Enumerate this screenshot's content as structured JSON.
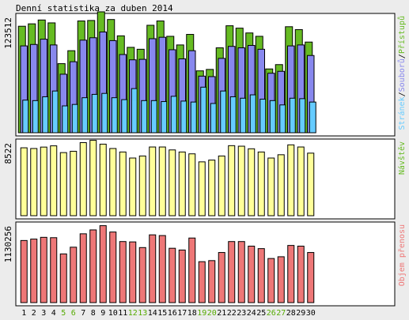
{
  "title": "Denní statistika za duben 2014",
  "colors": {
    "background": "#ececec",
    "panel": "#ffffff",
    "border": "#000000",
    "hits": "#66bb22",
    "files": "#8888ee",
    "pages": "#66ccff",
    "visits": "#ffff99",
    "kbytes": "#ee7777",
    "weekend_label": "#55aa00",
    "label": "#000000"
  },
  "chart_data": [
    {
      "type": "bar",
      "name": "hits-files-pages",
      "categories": [
        "1",
        "2",
        "3",
        "4",
        "5",
        "6",
        "7",
        "8",
        "9",
        "10",
        "11",
        "12",
        "13",
        "14",
        "15",
        "16",
        "17",
        "18",
        "19",
        "20",
        "21",
        "22",
        "23",
        "24",
        "25",
        "26",
        "27",
        "28",
        "29",
        "30"
      ],
      "weekend": [
        "5",
        "6",
        "12",
        "13",
        "19",
        "20",
        "26",
        "27"
      ],
      "ymax_label": "123512",
      "ylim": [
        0,
        123512
      ],
      "legend": [
        {
          "text": "Stránek",
          "color_key": "pages"
        },
        {
          "text": "/",
          "color_key": "label"
        },
        {
          "text": "Souborů",
          "color_key": "files"
        },
        {
          "text": "/",
          "color_key": "label"
        },
        {
          "text": "Přístupů",
          "color_key": "hits"
        }
      ],
      "series": [
        {
          "name": "Přístupů",
          "color_key": "hits",
          "values": [
            111000,
            113500,
            117500,
            114500,
            72000,
            85500,
            116500,
            117000,
            126000,
            118000,
            101000,
            89000,
            87000,
            112000,
            116500,
            100500,
            91500,
            102500,
            64500,
            66000,
            88500,
            111500,
            109000,
            104000,
            100500,
            66500,
            71000,
            110500,
            107500,
            94500
          ]
        },
        {
          "name": "Souborů",
          "color_key": "files",
          "values": [
            90500,
            92000,
            97500,
            91500,
            61000,
            74000,
            96500,
            99000,
            105000,
            96000,
            81500,
            76000,
            76500,
            98000,
            99500,
            86500,
            77000,
            85500,
            59000,
            58500,
            77500,
            90000,
            88500,
            91000,
            87000,
            62000,
            64000,
            90500,
            91500,
            80500
          ]
        },
        {
          "name": "Stránek",
          "color_key": "pages",
          "values": [
            34000,
            33500,
            37500,
            43500,
            28000,
            29500,
            36500,
            40000,
            41000,
            36500,
            34500,
            46000,
            33500,
            33500,
            32500,
            38000,
            33000,
            32000,
            47500,
            30500,
            43500,
            37500,
            36000,
            39500,
            35000,
            33500,
            29000,
            36000,
            35500,
            32000
          ]
        }
      ]
    },
    {
      "type": "bar",
      "name": "visits",
      "categories": [
        "1",
        "2",
        "3",
        "4",
        "5",
        "6",
        "7",
        "8",
        "9",
        "10",
        "11",
        "12",
        "13",
        "14",
        "15",
        "16",
        "17",
        "18",
        "19",
        "20",
        "21",
        "22",
        "23",
        "24",
        "25",
        "26",
        "27",
        "28",
        "29",
        "30"
      ],
      "ymax_label": "8522",
      "ylim": [
        0,
        8522
      ],
      "legend": [
        {
          "text": "Návštěv",
          "color_key": "hits"
        }
      ],
      "series": [
        {
          "name": "Návštěv",
          "color_key": "visits",
          "values": [
            7630,
            7550,
            7710,
            7850,
            7090,
            7240,
            8210,
            8470,
            8040,
            7550,
            7160,
            6480,
            6710,
            7720,
            7720,
            7390,
            7160,
            6950,
            6050,
            6250,
            6710,
            7870,
            7810,
            7520,
            7160,
            6480,
            6850,
            7960,
            7720,
            7030
          ]
        }
      ]
    },
    {
      "type": "bar",
      "name": "kbytes",
      "categories": [
        "1",
        "2",
        "3",
        "4",
        "5",
        "6",
        "7",
        "8",
        "9",
        "10",
        "11",
        "12",
        "13",
        "14",
        "15",
        "16",
        "17",
        "18",
        "19",
        "20",
        "21",
        "22",
        "23",
        "24",
        "25",
        "26",
        "27",
        "28",
        "29",
        "30"
      ],
      "ymax_label": "1130256",
      "ylim": [
        0,
        1130256
      ],
      "legend": [
        {
          "text": "Objem přenosu",
          "color_key": "kbytes"
        }
      ],
      "series": [
        {
          "name": "Objem přenosu",
          "color_key": "kbytes",
          "values": [
            880000,
            900000,
            925000,
            920000,
            690000,
            785000,
            975000,
            1030000,
            1090000,
            1000000,
            865000,
            860000,
            780000,
            960000,
            950000,
            770000,
            745000,
            915000,
            580000,
            595000,
            710000,
            865000,
            865000,
            800000,
            765000,
            625000,
            650000,
            810000,
            800000,
            710000
          ]
        }
      ]
    }
  ]
}
